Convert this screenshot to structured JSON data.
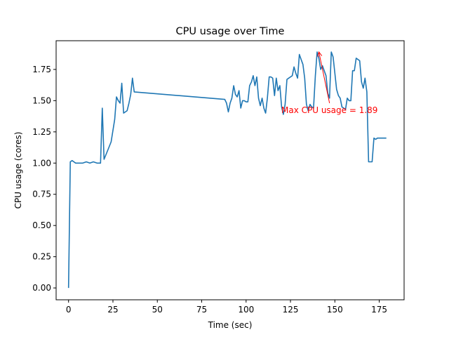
{
  "chart_data": {
    "type": "line",
    "title": "CPU usage over Time",
    "xlabel": "Time (sec)",
    "ylabel": "CPU usage (cores)",
    "xlim": [
      -7,
      189
    ],
    "ylim": [
      -0.095,
      1.98
    ],
    "xticks": [
      0,
      25,
      50,
      75,
      100,
      125,
      150,
      175
    ],
    "yticks": [
      0.0,
      0.25,
      0.5,
      0.75,
      1.0,
      1.25,
      1.5,
      1.75
    ],
    "ytick_labels": [
      "0.00",
      "0.25",
      "0.50",
      "0.75",
      "1.00",
      "1.25",
      "1.50",
      "1.75"
    ],
    "grid": false,
    "series": [
      {
        "color": "#1f77b4",
        "x": [
          0,
          1,
          2,
          3,
          4,
          6,
          8,
          10,
          12,
          14,
          16,
          18,
          19,
          20,
          22,
          24,
          26,
          27,
          28,
          29,
          30,
          31,
          32,
          33,
          34,
          35,
          36,
          37,
          88,
          89,
          90,
          91,
          92,
          93,
          94,
          95,
          96,
          97,
          98,
          99,
          100,
          101,
          102,
          103,
          104,
          105,
          106,
          107,
          108,
          109,
          110,
          111,
          112,
          113,
          114,
          115,
          116,
          117,
          118,
          119,
          120,
          121,
          122,
          123,
          124,
          125,
          126,
          127,
          128,
          129,
          130,
          131,
          132,
          133,
          134,
          135,
          136,
          137,
          138,
          139,
          140,
          141,
          142,
          143,
          144,
          145,
          146,
          147,
          148,
          149,
          150,
          151,
          152,
          153,
          154,
          155,
          156,
          157,
          158,
          159,
          160,
          161,
          162,
          163,
          164,
          165,
          166,
          167,
          168,
          169,
          170,
          171,
          172,
          173,
          174,
          175,
          176,
          177,
          178,
          179
        ],
        "y": [
          0.0,
          1.01,
          1.02,
          1.01,
          1.0,
          1.0,
          1.0,
          1.01,
          1.0,
          1.01,
          1.0,
          1.0,
          1.44,
          1.03,
          1.1,
          1.17,
          1.35,
          1.53,
          1.5,
          1.48,
          1.64,
          1.4,
          1.41,
          1.42,
          1.48,
          1.55,
          1.68,
          1.57,
          1.51,
          1.48,
          1.41,
          1.48,
          1.52,
          1.62,
          1.55,
          1.53,
          1.58,
          1.44,
          1.5,
          1.5,
          1.49,
          1.49,
          1.62,
          1.65,
          1.7,
          1.62,
          1.69,
          1.52,
          1.46,
          1.52,
          1.44,
          1.4,
          1.52,
          1.69,
          1.69,
          1.68,
          1.54,
          1.68,
          1.58,
          1.62,
          1.45,
          1.39,
          1.47,
          1.67,
          1.68,
          1.69,
          1.7,
          1.77,
          1.72,
          1.68,
          1.87,
          1.83,
          1.79,
          1.68,
          1.47,
          1.42,
          1.47,
          1.45,
          1.44,
          1.7,
          1.89,
          1.84,
          1.75,
          1.78,
          1.74,
          1.7,
          1.56,
          1.52,
          1.89,
          1.85,
          1.72,
          1.59,
          1.54,
          1.52,
          1.45,
          1.44,
          1.43,
          1.52,
          1.5,
          1.5,
          1.74,
          1.74,
          1.84,
          1.83,
          1.82,
          1.65,
          1.6,
          1.68,
          1.57,
          1.01,
          1.01,
          1.01,
          1.2,
          1.19,
          1.2,
          1.2,
          1.2,
          1.2,
          1.2,
          1.2
        ]
      }
    ],
    "annotation": {
      "text": "Max CPU usage = 1.89",
      "color": "#ff0000",
      "point": [
        141,
        1.89
      ],
      "text_anchor_data": [
        147,
        1.48
      ]
    }
  }
}
